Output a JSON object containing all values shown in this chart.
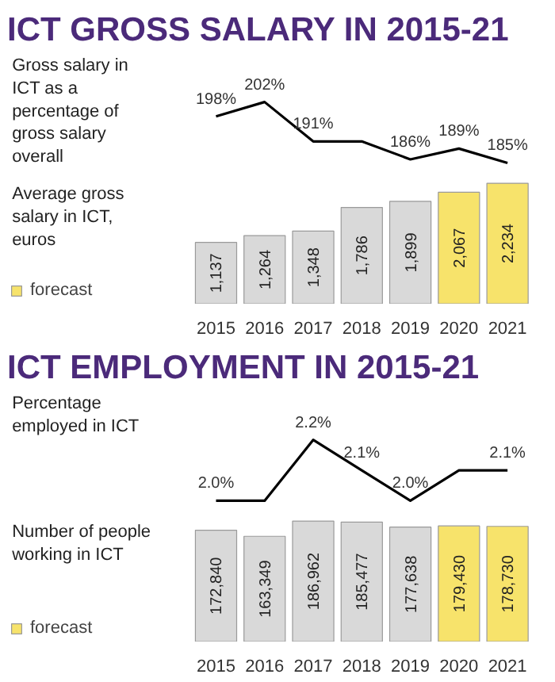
{
  "chart_data": [
    {
      "type": "line",
      "title": "ICT GROSS SALARY IN 2015-21",
      "ylabel": "Gross salary in ICT as a percentage of gross salary overall",
      "categories": [
        "2015",
        "2016",
        "2017",
        "2018",
        "2019",
        "2020",
        "2021"
      ],
      "tick_labels": false,
      "series": [
        {
          "color": "#000000",
          "values": [
            198,
            202,
            191,
            191,
            186,
            189,
            185
          ],
          "value_labels": [
            "198%",
            "202%",
            "191%",
            null,
            "186%",
            "189%",
            "185%"
          ]
        }
      ]
    },
    {
      "type": "bar",
      "ylabel": "Average gross salary in ICT, euros",
      "categories": [
        "2015",
        "2016",
        "2017",
        "2018",
        "2019",
        "2020",
        "2021"
      ],
      "legend": "bottom left",
      "tick_labels": "x",
      "series": [
        {
          "color": "#d9d9d9",
          "values": [
            1137,
            1264,
            1348,
            1786,
            1899,
            null,
            null
          ],
          "value_labels": [
            "1,137",
            "1,264",
            "1,348",
            "1,786",
            "1,899",
            null,
            null
          ]
        },
        {
          "name": "forecast",
          "color": "#f7e36b",
          "values": [
            null,
            null,
            null,
            null,
            null,
            2067,
            2234
          ],
          "value_labels": [
            null,
            null,
            null,
            null,
            null,
            "2,067",
            "2,234"
          ]
        }
      ]
    },
    {
      "type": "line",
      "title": "ICT EMPLOYMENT IN 2015-21",
      "ylabel": "Percentage employed in ICT",
      "categories": [
        "2015",
        "2016",
        "2017",
        "2018",
        "2019",
        "2020",
        "2021"
      ],
      "tick_labels": false,
      "series": [
        {
          "color": "#000000",
          "values": [
            2.0,
            2.0,
            2.2,
            2.1,
            2.0,
            2.1,
            2.1
          ],
          "value_labels": [
            "2.0%",
            null,
            "2.2%",
            "2.1%",
            "2.0%",
            null,
            "2.1%"
          ]
        }
      ]
    },
    {
      "type": "bar",
      "ylabel": "Number of people working in ICT",
      "categories": [
        "2015",
        "2016",
        "2017",
        "2018",
        "2019",
        "2020",
        "2021"
      ],
      "legend": "bottom left",
      "tick_labels": "x",
      "series": [
        {
          "color": "#d9d9d9",
          "values": [
            172840,
            163349,
            186962,
            185477,
            177638,
            null,
            null
          ],
          "value_labels": [
            "172,840",
            "163,349",
            "186,962",
            "185,477",
            "177,638",
            null,
            null
          ]
        },
        {
          "name": "forecast",
          "color": "#f7e36b",
          "values": [
            null,
            null,
            null,
            null,
            null,
            179430,
            178730
          ],
          "value_labels": [
            null,
            null,
            null,
            null,
            null,
            "179,430",
            "178,730"
          ]
        }
      ]
    }
  ]
}
